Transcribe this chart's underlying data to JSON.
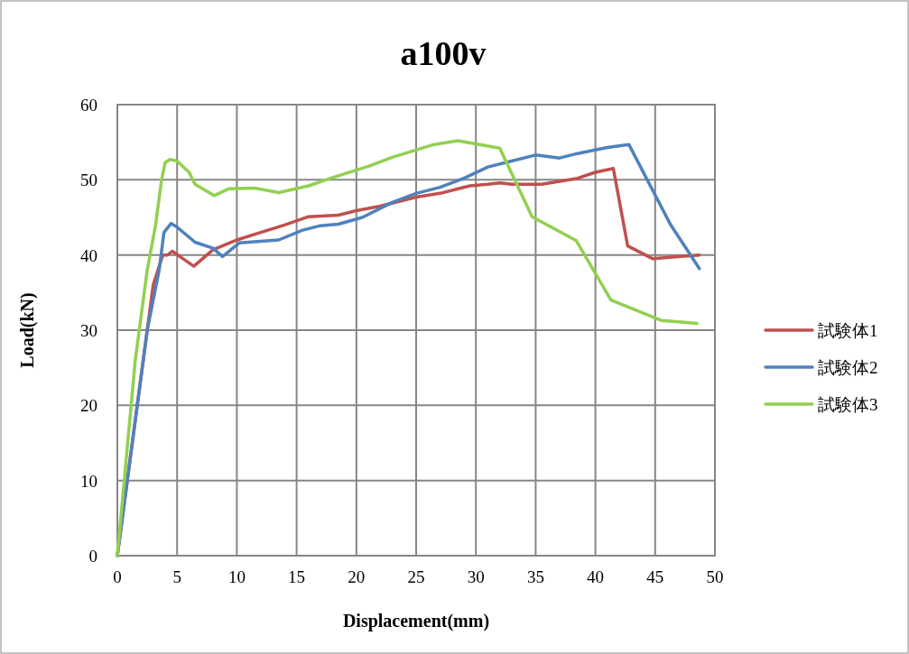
{
  "chart_data": {
    "type": "line",
    "title": "a100v",
    "xlabel": "Displacement(mm)",
    "ylabel": "Load(kN)",
    "xlim": [
      0,
      50
    ],
    "ylim": [
      0,
      60
    ],
    "xticks": [
      0,
      5,
      10,
      15,
      20,
      25,
      30,
      35,
      40,
      45,
      50
    ],
    "yticks": [
      0,
      10,
      20,
      30,
      40,
      50,
      60
    ],
    "grid": true,
    "legend": "right",
    "marker": "none",
    "line_style": "solid",
    "series": [
      {
        "name": "試験体1",
        "color": "#c0504d",
        "x": [
          0,
          2.5,
          3,
          3.8,
          4.2,
          4.6,
          5.5,
          6.4,
          8,
          10,
          12,
          14,
          16,
          18.5,
          20,
          22,
          25,
          27,
          29.5,
          31,
          32,
          33,
          35.5,
          37,
          38.5,
          40,
          41.5,
          42.7,
          44.8,
          48.7
        ],
        "values": [
          0,
          30,
          36,
          40,
          40,
          40.5,
          39.5,
          38.5,
          40.7,
          42,
          43,
          44,
          45.1,
          45.3,
          45.9,
          46.5,
          47.7,
          48.2,
          49.2,
          49.4,
          49.6,
          49.4,
          49.4,
          49.8,
          50.2,
          51,
          51.5,
          41.2,
          39.5,
          40
        ]
      },
      {
        "name": "試験体2",
        "color": "#4f81bd",
        "x": [
          0,
          1.5,
          2.5,
          3.5,
          3.9,
          4.5,
          5,
          6.5,
          8,
          8.8,
          10.2,
          13.5,
          15.5,
          17,
          18.5,
          20.5,
          23,
          25,
          27,
          29,
          31,
          33,
          35,
          37,
          38.5,
          41,
          42.8,
          46.3,
          48.7
        ],
        "values": [
          0,
          18,
          30,
          38,
          43,
          44.2,
          43.7,
          41.7,
          40.9,
          39.8,
          41.6,
          42,
          43.3,
          43.9,
          44.1,
          45,
          47,
          48.2,
          49,
          50.2,
          51.7,
          52.5,
          53.3,
          52.9,
          53.5,
          54.3,
          54.7,
          44,
          38.2
        ]
      },
      {
        "name": "試験体3",
        "color": "#92d050",
        "x": [
          0,
          1.5,
          2.5,
          3.2,
          3.7,
          4,
          4.4,
          5,
          6,
          6.5,
          8.1,
          9.3,
          11.5,
          13.5,
          16,
          18,
          21,
          23,
          26.5,
          28.5,
          32,
          34.7,
          38.4,
          41.3,
          45.5,
          48.5
        ],
        "values": [
          0,
          26,
          38,
          44,
          50,
          52.3,
          52.7,
          52.5,
          51,
          49.4,
          47.9,
          48.8,
          48.9,
          48.3,
          49.2,
          50.3,
          51.8,
          53,
          54.7,
          55.2,
          54.2,
          45.1,
          41.9,
          34,
          31.3,
          30.9
        ]
      }
    ]
  }
}
